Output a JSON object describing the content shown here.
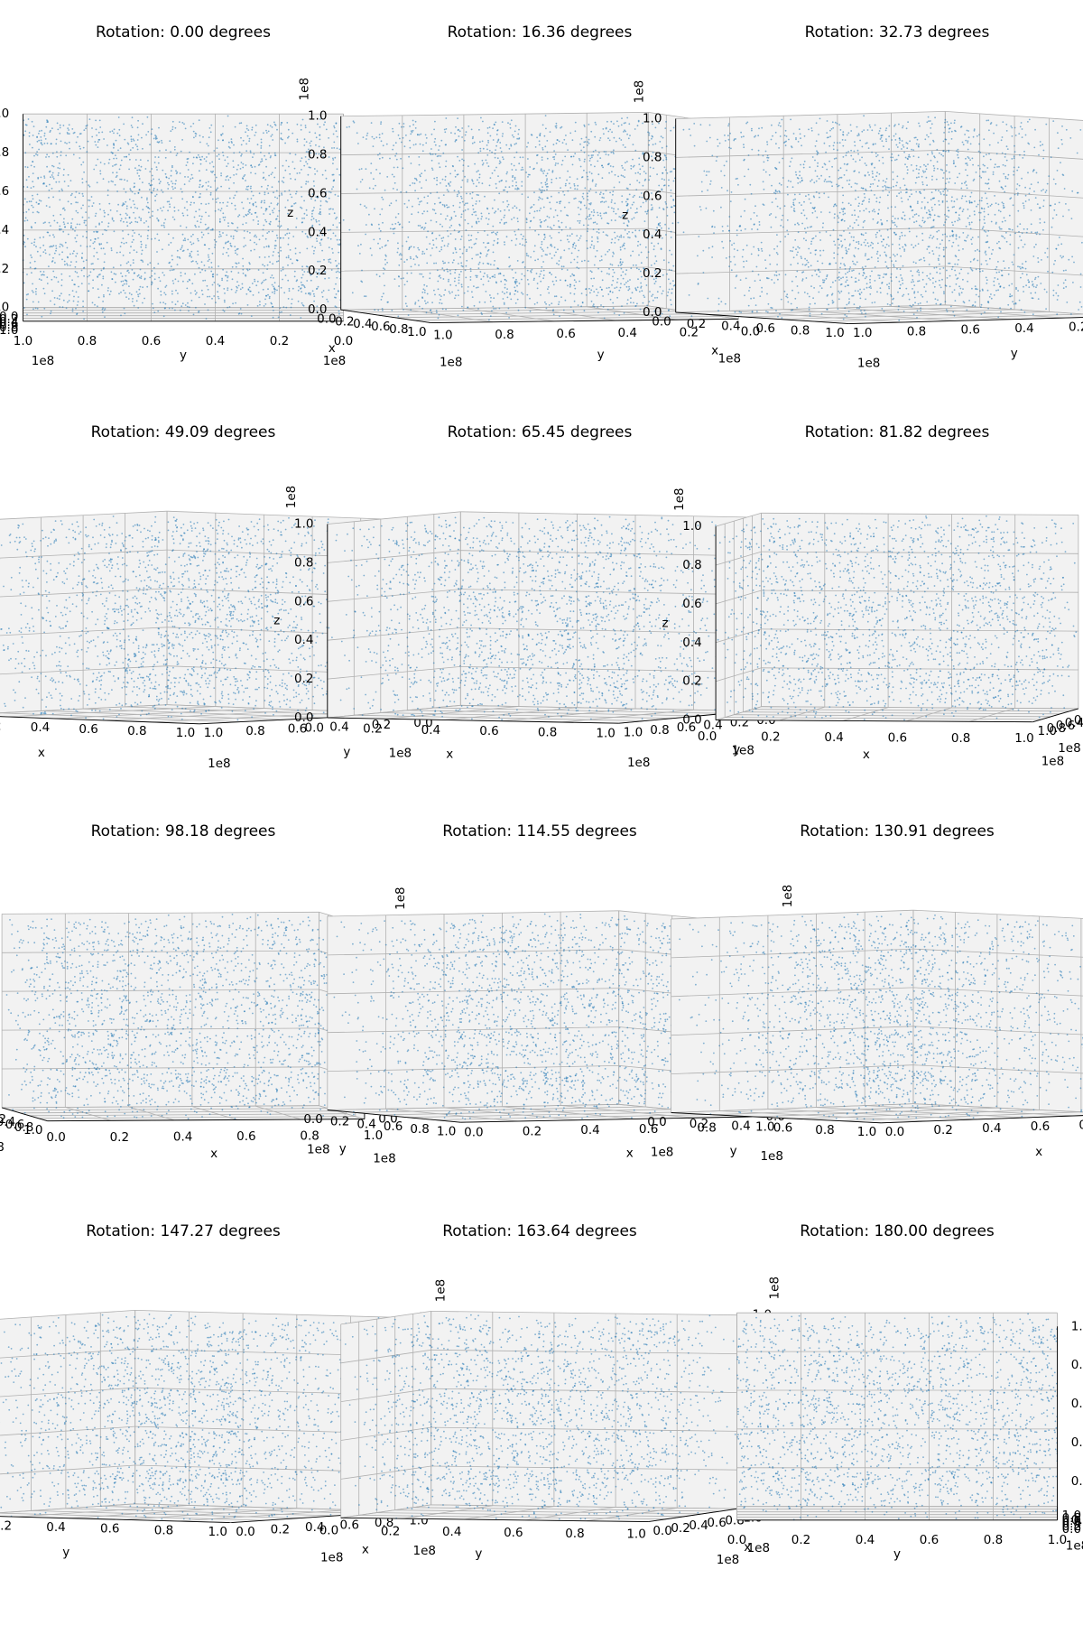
{
  "chart_data": {
    "type": "scatter",
    "variant": "3d-small-multiples",
    "points_per_panel": "≈2000 (uniform random in [0, 1e8]³)",
    "marker_color": "#1f77b4",
    "pane_color": "#f2f2f2",
    "grid": true,
    "axes": {
      "x": {
        "label": "x",
        "range": [
          0,
          100000000
        ],
        "ticks": [
          "0.0",
          "0.2",
          "0.4",
          "0.6",
          "0.8",
          "1.0"
        ],
        "offset_text": "1e8"
      },
      "y": {
        "label": "y",
        "range": [
          0,
          100000000
        ],
        "ticks": [
          "0.0",
          "0.2",
          "0.4",
          "0.6",
          "0.8",
          "1.0"
        ],
        "offset_text": "1e8"
      },
      "z": {
        "label": "z",
        "range": [
          0,
          100000000
        ],
        "ticks": [
          "0.0",
          "0.2",
          "0.4",
          "0.6",
          "0.8",
          "1.0"
        ],
        "offset_text": "1e8"
      }
    },
    "panels": [
      {
        "title": "Rotation: 0.00 degrees",
        "azimuth": 0.0
      },
      {
        "title": "Rotation: 16.36 degrees",
        "azimuth": 16.36
      },
      {
        "title": "Rotation: 32.73 degrees",
        "azimuth": 32.73
      },
      {
        "title": "Rotation: 49.09 degrees",
        "azimuth": 49.09
      },
      {
        "title": "Rotation: 65.45 degrees",
        "azimuth": 65.45
      },
      {
        "title": "Rotation: 81.82 degrees",
        "azimuth": 81.82
      },
      {
        "title": "Rotation: 98.18 degrees",
        "azimuth": 98.18
      },
      {
        "title": "Rotation: 114.55 degrees",
        "azimuth": 114.55
      },
      {
        "title": "Rotation: 130.91 degrees",
        "azimuth": 130.91
      },
      {
        "title": "Rotation: 147.27 degrees",
        "azimuth": 147.27
      },
      {
        "title": "Rotation: 163.64 degrees",
        "azimuth": 163.64
      },
      {
        "title": "Rotation: 180.00 degrees",
        "azimuth": 180.0
      }
    ]
  }
}
